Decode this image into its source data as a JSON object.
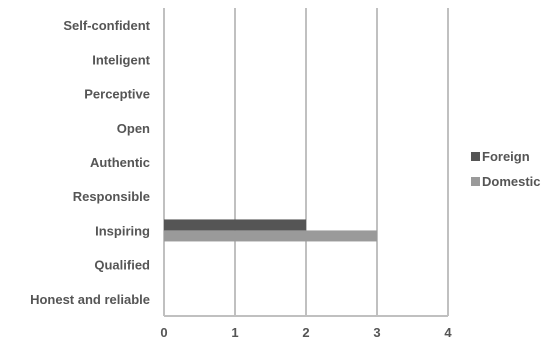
{
  "chart_data": {
    "type": "bar",
    "orientation": "horizontal",
    "categories": [
      "Self-confident",
      "Inteligent",
      "Perceptive",
      "Open",
      "Authentic",
      "Responsible",
      "Inspiring",
      "Qualified",
      "Honest and reliable"
    ],
    "series": [
      {
        "name": "Foreign",
        "values": [
          0,
          0,
          0,
          0,
          0,
          0,
          2,
          0,
          0
        ],
        "color": "#555555"
      },
      {
        "name": "Domestic",
        "values": [
          0,
          0,
          0,
          0,
          0,
          0,
          3,
          0,
          0
        ],
        "color": "#9a9a9a"
      }
    ],
    "xlim": [
      0,
      4
    ],
    "xticks": [
      "0",
      "1",
      "2",
      "3",
      "4"
    ],
    "grid": "vertical",
    "grid_color": "#c0c0c0",
    "legend_position": "right"
  }
}
